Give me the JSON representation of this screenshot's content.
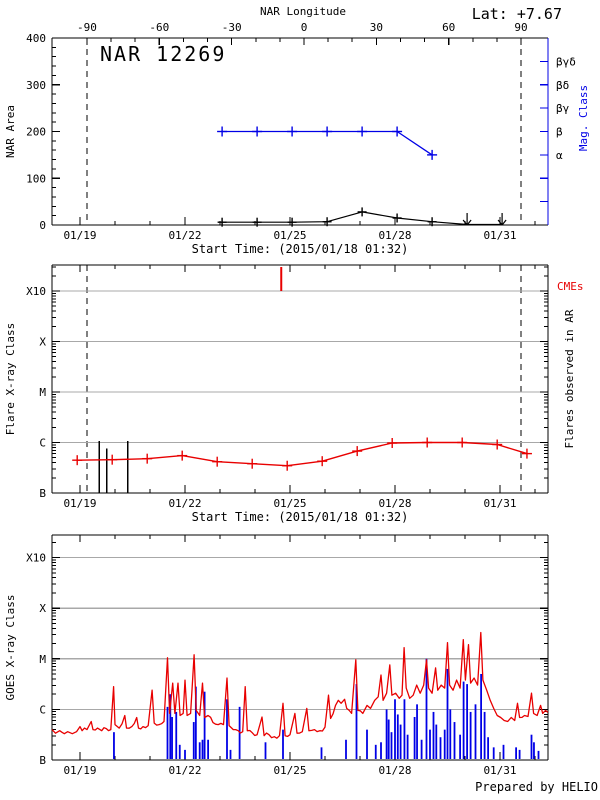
{
  "header": {
    "lat_label": "Lat:  +7.67",
    "prepared_by": "Prepared by HELIO"
  },
  "colors": {
    "accent_red": "#e80000",
    "accent_blue": "#0000e6",
    "gridline_gray": "#a8a8a8",
    "axis_black": "#000000"
  },
  "time_axis": {
    "start_label": "Start Time: (2015/01/18 01:32)",
    "major_ticks": [
      {
        "t": 19.0,
        "label": "01/19"
      },
      {
        "t": 22.0,
        "label": "01/22"
      },
      {
        "t": 25.0,
        "label": "01/25"
      },
      {
        "t": 28.0,
        "label": "01/28"
      },
      {
        "t": 31.0,
        "label": "01/31"
      }
    ],
    "minor_tick_days": [
      19,
      20,
      21,
      22,
      23,
      24,
      25,
      26,
      27,
      28,
      29,
      30,
      31,
      32
    ],
    "t_min": 18.2,
    "t_max": 32.37,
    "limb_crossing_times": [
      19.2,
      31.6
    ]
  },
  "chart_data": [
    {
      "type": "line",
      "title": "NAR 12269",
      "ylabel": "NAR Area",
      "xlabel": "Start Time: (2015/01/18 01:32)",
      "ylim": [
        0,
        400
      ],
      "yticks": [
        0,
        100,
        200,
        300,
        400
      ],
      "y_minor_step": 20,
      "top_axis": {
        "label": "NAR Longitude",
        "ticks": [
          -90,
          -60,
          -30,
          0,
          30,
          60,
          90
        ],
        "minor_step": 10
      },
      "y2label": "Mag. Class",
      "y2ticks": [
        {
          "v": 350,
          "label": "βγδ"
        },
        {
          "v": 300,
          "label": "βδ"
        },
        {
          "v": 250,
          "label": "βγ"
        },
        {
          "v": 200,
          "label": "β"
        },
        {
          "v": 150,
          "label": "α"
        },
        {
          "v": 100,
          "label": ""
        },
        {
          "v": 50,
          "label": ""
        }
      ],
      "series": [
        {
          "name": "nar-area",
          "color": "#000000",
          "points": [
            [
              23.06,
              6
            ],
            [
              24.06,
              6
            ],
            [
              25.06,
              6
            ],
            [
              26.06,
              7
            ],
            [
              27.06,
              28
            ],
            [
              28.06,
              15
            ],
            [
              29.06,
              7
            ],
            [
              30.06,
              1
            ],
            [
              31.06,
              1
            ]
          ],
          "marker_points": 7,
          "zero_arrow_times": [
            30.06,
            31.06
          ]
        },
        {
          "name": "mag-class",
          "color": "#0000e6",
          "points": [
            [
              23.06,
              200
            ],
            [
              24.06,
              200
            ],
            [
              25.06,
              200
            ],
            [
              26.06,
              200
            ],
            [
              27.06,
              200
            ],
            [
              28.06,
              200
            ],
            [
              29.06,
              150
            ]
          ]
        }
      ]
    },
    {
      "type": "line",
      "ylabel": "Flare X-ray Class",
      "xlabel": "Start Time: (2015/01/18 01:32)",
      "right_label": "Flares observed in AR",
      "cme_label": "CMEs",
      "yticks": [
        {
          "u": 0,
          "label": "B"
        },
        {
          "u": 1,
          "label": "C"
        },
        {
          "u": 2,
          "label": "M"
        },
        {
          "u": 3,
          "label": "X"
        },
        {
          "u": 4,
          "label": "X10"
        }
      ],
      "cme_times": [
        24.75
      ],
      "flare_bars": [
        [
          19.55,
          1.03
        ],
        [
          19.76,
          0.88
        ],
        [
          20.36,
          1.03
        ]
      ],
      "series": [
        {
          "name": "flare-background",
          "color": "#e80000",
          "points": [
            [
              18.92,
              0.65
            ],
            [
              19.92,
              0.66
            ],
            [
              20.92,
              0.68
            ],
            [
              21.92,
              0.74
            ],
            [
              22.92,
              0.62
            ],
            [
              23.92,
              0.58
            ],
            [
              24.92,
              0.54
            ],
            [
              25.92,
              0.63
            ],
            [
              26.92,
              0.83
            ],
            [
              27.92,
              0.99
            ],
            [
              28.92,
              1.0
            ],
            [
              29.92,
              1.0
            ],
            [
              30.92,
              0.96
            ],
            [
              31.77,
              0.78
            ]
          ]
        }
      ]
    },
    {
      "type": "line",
      "ylabel": "GOES X-ray Class",
      "yticks": [
        {
          "u": 0,
          "label": "B"
        },
        {
          "u": 1,
          "label": "C"
        },
        {
          "u": 2,
          "label": "M"
        },
        {
          "u": 3,
          "label": "X"
        },
        {
          "u": 4,
          "label": "X10"
        }
      ],
      "goes_curve": [
        [
          18.2,
          0.6
        ],
        [
          18.3,
          0.53
        ],
        [
          18.42,
          0.58
        ],
        [
          18.55,
          0.52
        ],
        [
          18.65,
          0.56
        ],
        [
          18.78,
          0.52
        ],
        [
          18.9,
          0.56
        ],
        [
          19.0,
          0.66
        ],
        [
          19.06,
          0.58
        ],
        [
          19.2,
          0.6
        ],
        [
          19.32,
          0.76
        ],
        [
          19.37,
          0.6
        ],
        [
          19.5,
          0.63
        ],
        [
          19.62,
          0.58
        ],
        [
          19.75,
          0.62
        ],
        [
          19.88,
          0.6
        ],
        [
          19.96,
          1.45
        ],
        [
          20.0,
          0.7
        ],
        [
          20.12,
          0.63
        ],
        [
          20.28,
          0.88
        ],
        [
          20.33,
          0.63
        ],
        [
          20.48,
          0.66
        ],
        [
          20.62,
          0.84
        ],
        [
          20.67,
          0.63
        ],
        [
          20.8,
          0.66
        ],
        [
          20.95,
          0.68
        ],
        [
          21.06,
          1.38
        ],
        [
          21.12,
          0.73
        ],
        [
          21.26,
          0.7
        ],
        [
          21.4,
          0.76
        ],
        [
          21.5,
          2.02
        ],
        [
          21.56,
          0.92
        ],
        [
          21.65,
          1.52
        ],
        [
          21.71,
          0.92
        ],
        [
          21.8,
          1.52
        ],
        [
          21.86,
          0.88
        ],
        [
          21.95,
          0.92
        ],
        [
          22.0,
          1.58
        ],
        [
          22.06,
          0.88
        ],
        [
          22.16,
          0.92
        ],
        [
          22.26,
          2.08
        ],
        [
          22.32,
          0.98
        ],
        [
          22.42,
          0.88
        ],
        [
          22.5,
          1.52
        ],
        [
          22.56,
          0.84
        ],
        [
          22.66,
          0.88
        ],
        [
          22.8,
          0.74
        ],
        [
          22.95,
          0.7
        ],
        [
          23.1,
          0.7
        ],
        [
          23.2,
          1.62
        ],
        [
          23.26,
          0.68
        ],
        [
          23.38,
          0.6
        ],
        [
          23.52,
          0.58
        ],
        [
          23.65,
          0.56
        ],
        [
          23.72,
          1.45
        ],
        [
          23.78,
          0.58
        ],
        [
          23.92,
          0.54
        ],
        [
          24.06,
          0.5
        ],
        [
          24.2,
          0.85
        ],
        [
          24.26,
          0.48
        ],
        [
          24.4,
          0.5
        ],
        [
          24.55,
          0.46
        ],
        [
          24.7,
          0.48
        ],
        [
          24.8,
          1.12
        ],
        [
          24.86,
          0.48
        ],
        [
          25.0,
          0.5
        ],
        [
          25.14,
          0.92
        ],
        [
          25.2,
          0.53
        ],
        [
          25.35,
          0.56
        ],
        [
          25.48,
          1.02
        ],
        [
          25.54,
          0.58
        ],
        [
          25.7,
          0.6
        ],
        [
          25.85,
          0.58
        ],
        [
          26.0,
          0.65
        ],
        [
          26.1,
          1.28
        ],
        [
          26.16,
          0.82
        ],
        [
          26.3,
          1.08
        ],
        [
          26.38,
          1.18
        ],
        [
          26.46,
          1.12
        ],
        [
          26.56,
          1.2
        ],
        [
          26.62,
          1.02
        ],
        [
          26.76,
          0.92
        ],
        [
          26.88,
          1.98
        ],
        [
          26.94,
          0.98
        ],
        [
          27.08,
          0.92
        ],
        [
          27.2,
          1.08
        ],
        [
          27.3,
          1.02
        ],
        [
          27.42,
          1.18
        ],
        [
          27.52,
          1.25
        ],
        [
          27.6,
          1.68
        ],
        [
          27.66,
          1.18
        ],
        [
          27.76,
          1.32
        ],
        [
          27.85,
          1.88
        ],
        [
          27.91,
          1.28
        ],
        [
          28.02,
          1.32
        ],
        [
          28.12,
          1.22
        ],
        [
          28.2,
          1.28
        ],
        [
          28.26,
          2.22
        ],
        [
          28.32,
          1.42
        ],
        [
          28.42,
          1.22
        ],
        [
          28.52,
          1.28
        ],
        [
          28.62,
          1.48
        ],
        [
          28.72,
          1.32
        ],
        [
          28.82,
          1.48
        ],
        [
          28.9,
          1.98
        ],
        [
          28.96,
          1.42
        ],
        [
          29.06,
          1.32
        ],
        [
          29.16,
          1.82
        ],
        [
          29.22,
          1.38
        ],
        [
          29.32,
          1.48
        ],
        [
          29.42,
          1.42
        ],
        [
          29.5,
          2.32
        ],
        [
          29.56,
          1.48
        ],
        [
          29.66,
          1.38
        ],
        [
          29.76,
          1.58
        ],
        [
          29.86,
          1.42
        ],
        [
          29.95,
          2.38
        ],
        [
          30.01,
          1.58
        ],
        [
          30.1,
          2.28
        ],
        [
          30.16,
          1.52
        ],
        [
          30.26,
          1.62
        ],
        [
          30.36,
          1.48
        ],
        [
          30.45,
          2.52
        ],
        [
          30.51,
          1.58
        ],
        [
          30.62,
          1.38
        ],
        [
          30.72,
          1.18
        ],
        [
          30.82,
          1.02
        ],
        [
          30.92,
          0.88
        ],
        [
          31.02,
          0.84
        ],
        [
          31.12,
          0.78
        ],
        [
          31.22,
          0.76
        ],
        [
          31.32,
          0.84
        ],
        [
          31.42,
          0.78
        ],
        [
          31.5,
          1.12
        ],
        [
          31.56,
          0.84
        ],
        [
          31.7,
          0.88
        ],
        [
          31.8,
          0.86
        ],
        [
          31.9,
          1.32
        ],
        [
          31.96,
          0.92
        ],
        [
          32.06,
          0.88
        ],
        [
          32.16,
          1.08
        ],
        [
          32.22,
          0.92
        ],
        [
          32.3,
          0.98
        ],
        [
          32.37,
          0.94
        ]
      ],
      "ar_flare_spikes": [
        [
          19.97,
          0.55
        ],
        [
          21.5,
          1.05
        ],
        [
          21.58,
          1.3
        ],
        [
          21.63,
          0.85
        ],
        [
          21.75,
          0.95
        ],
        [
          21.85,
          0.3
        ],
        [
          22.0,
          0.2
        ],
        [
          22.25,
          0.75
        ],
        [
          22.31,
          1.45
        ],
        [
          22.42,
          0.35
        ],
        [
          22.5,
          0.4
        ],
        [
          22.56,
          1.35
        ],
        [
          22.66,
          0.4
        ],
        [
          23.2,
          1.2
        ],
        [
          23.3,
          0.2
        ],
        [
          23.56,
          1.05
        ],
        [
          24.3,
          0.35
        ],
        [
          24.8,
          0.6
        ],
        [
          25.9,
          0.25
        ],
        [
          26.6,
          0.4
        ],
        [
          26.9,
          1.5
        ],
        [
          27.2,
          0.6
        ],
        [
          27.45,
          0.3
        ],
        [
          27.6,
          0.35
        ],
        [
          27.76,
          1.0
        ],
        [
          27.82,
          0.8
        ],
        [
          27.9,
          0.55
        ],
        [
          28.0,
          1.2
        ],
        [
          28.08,
          0.9
        ],
        [
          28.16,
          0.7
        ],
        [
          28.27,
          1.2
        ],
        [
          28.36,
          0.5
        ],
        [
          28.56,
          0.85
        ],
        [
          28.63,
          1.1
        ],
        [
          28.76,
          0.4
        ],
        [
          28.9,
          2.0
        ],
        [
          29.0,
          0.6
        ],
        [
          29.1,
          0.95
        ],
        [
          29.18,
          0.7
        ],
        [
          29.3,
          0.45
        ],
        [
          29.42,
          0.6
        ],
        [
          29.5,
          1.8
        ],
        [
          29.58,
          1.0
        ],
        [
          29.7,
          0.75
        ],
        [
          29.86,
          0.5
        ],
        [
          29.96,
          1.55
        ],
        [
          30.06,
          1.5
        ],
        [
          30.16,
          0.95
        ],
        [
          30.3,
          1.1
        ],
        [
          30.46,
          1.7
        ],
        [
          30.56,
          0.95
        ],
        [
          30.66,
          0.45
        ],
        [
          30.82,
          0.25
        ],
        [
          31.1,
          0.3
        ],
        [
          31.46,
          0.25
        ],
        [
          31.56,
          0.2
        ],
        [
          31.9,
          0.5
        ],
        [
          31.97,
          0.35
        ],
        [
          32.1,
          0.18
        ]
      ]
    }
  ]
}
